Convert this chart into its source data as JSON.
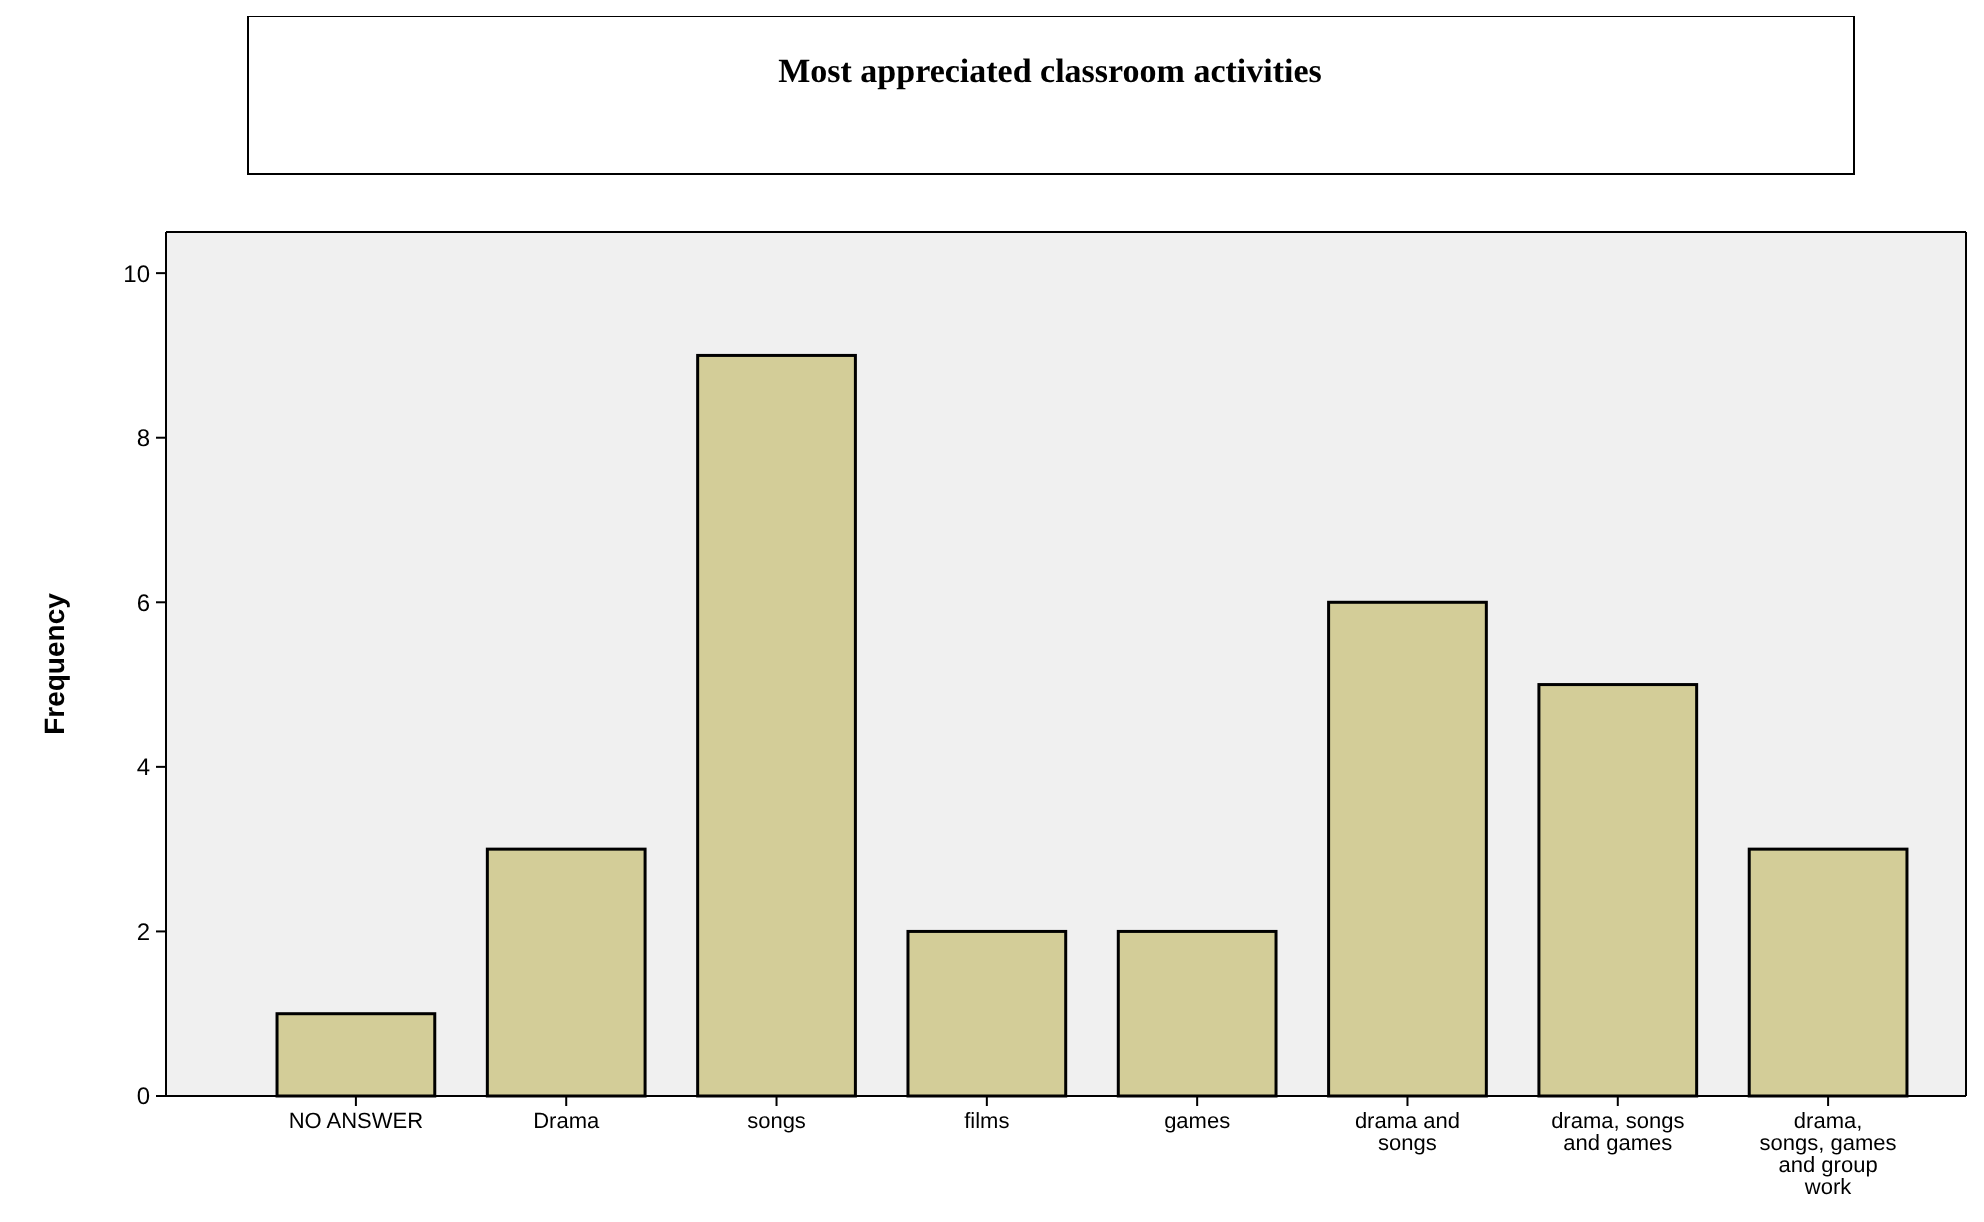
{
  "chart_data": {
    "type": "bar",
    "title": "Most appreciated classroom activities",
    "ylabel": "Frequency",
    "categories": [
      "NO ANSWER",
      "Drama",
      "songs",
      "films",
      "games",
      "drama and songs",
      "drama, songs and games",
      "drama, songs, games and group work"
    ],
    "values": [
      1,
      3,
      9,
      2,
      2,
      6,
      5,
      3
    ],
    "color": "#d3cd98",
    "ylim": [
      0,
      10.5
    ],
    "yticks": [
      0,
      2,
      4,
      6,
      8,
      10
    ],
    "grid": false
  }
}
